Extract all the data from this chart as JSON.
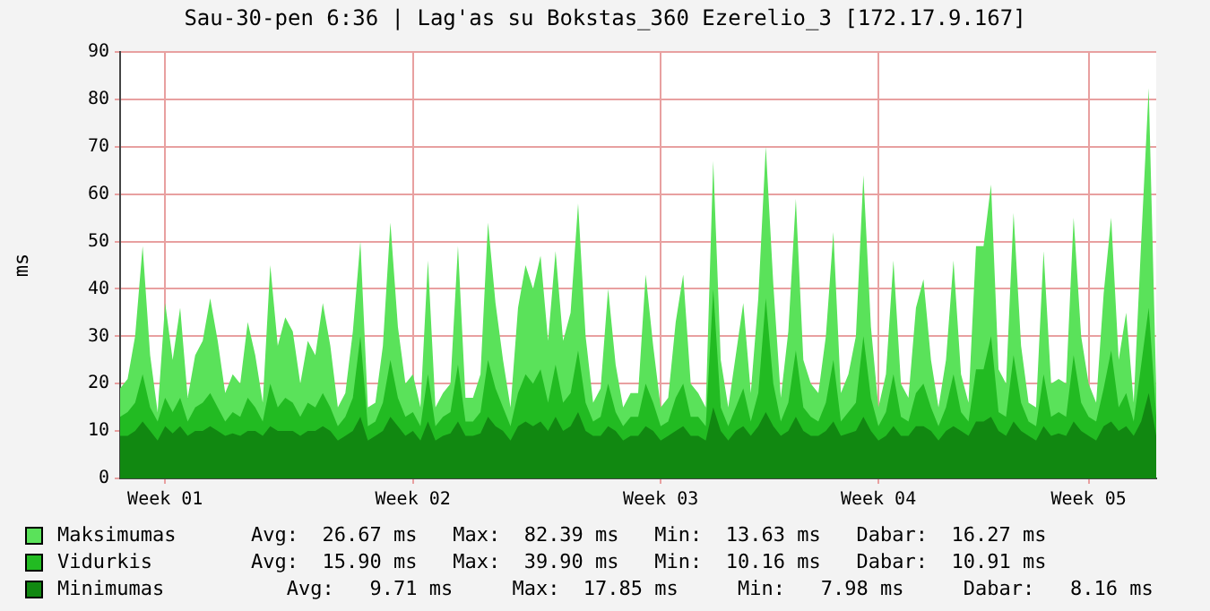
{
  "chart_data": {
    "type": "area",
    "title": "Sau-30-pen 6:36 | Lag'as su Bokstas_360 Ezerelio_3 [172.17.9.167]",
    "ylabel": "ms",
    "categories": [
      null,
      null,
      null,
      null,
      null,
      null,
      "Week 01",
      null,
      null,
      null,
      null,
      null,
      null,
      null,
      null,
      null,
      null,
      null,
      null,
      null,
      null,
      null,
      null,
      null,
      null,
      null,
      null,
      null,
      null,
      null,
      null,
      null,
      null,
      null,
      null,
      null,
      null,
      null,
      null,
      "Week 02",
      null,
      null,
      null,
      null,
      null,
      null,
      null,
      null,
      null,
      null,
      null,
      null,
      null,
      null,
      null,
      null,
      null,
      null,
      null,
      null,
      null,
      null,
      null,
      null,
      null,
      null,
      null,
      null,
      null,
      null,
      null,
      null,
      "Week 03",
      null,
      null,
      null,
      null,
      null,
      null,
      null,
      null,
      null,
      null,
      null,
      null,
      null,
      null,
      null,
      null,
      null,
      null,
      null,
      null,
      null,
      null,
      null,
      null,
      null,
      null,
      null,
      null,
      "Week 04",
      null,
      null,
      null,
      null,
      null,
      null,
      null,
      null,
      null,
      null,
      null,
      null,
      null,
      null,
      null,
      null,
      null,
      null,
      null,
      null,
      null,
      null,
      null,
      null,
      null,
      null,
      null,
      "Week 05",
      null,
      null,
      null,
      null,
      null,
      null,
      null,
      null,
      null
    ],
    "series": [
      {
        "name": "Maksimumas",
        "color": "#5ae25a",
        "values": [
          19,
          21,
          30,
          49,
          26,
          14,
          37,
          25,
          36,
          17,
          26,
          29,
          38,
          29,
          18,
          22,
          20,
          33,
          26,
          16,
          45,
          28,
          34,
          31,
          20,
          29,
          26,
          37,
          28,
          15,
          18,
          31,
          50,
          15,
          16,
          28,
          54,
          32,
          20,
          22,
          15,
          46,
          15,
          18,
          20,
          49,
          17,
          17,
          22,
          54,
          37,
          25,
          15,
          36,
          45,
          40,
          47,
          29,
          48,
          29,
          35,
          58,
          30,
          16,
          19,
          40,
          24,
          15,
          18,
          18,
          43,
          28,
          15,
          17,
          33,
          43,
          20,
          18,
          15,
          67,
          25,
          15,
          26,
          37,
          18,
          38,
          70,
          41,
          17,
          31,
          59,
          25,
          20,
          18,
          30,
          52,
          18,
          22,
          30,
          64,
          32,
          15,
          22,
          46,
          20,
          17,
          36,
          42,
          25,
          15,
          25,
          46,
          22,
          16,
          49,
          49,
          62,
          23,
          20,
          56,
          28,
          16,
          15,
          48,
          20,
          21,
          20,
          55,
          30,
          20,
          16,
          39,
          55,
          25,
          35,
          16,
          50,
          82.4,
          19
        ]
      },
      {
        "name": "Vidurkis",
        "color": "#22bb22",
        "values": [
          13,
          14,
          16,
          22,
          15,
          12,
          17,
          14,
          17,
          12,
          15,
          16,
          18,
          15,
          12,
          14,
          13,
          17,
          15,
          12,
          20,
          15,
          17,
          16,
          13,
          16,
          15,
          18,
          15,
          11,
          13,
          17,
          30,
          11,
          12,
          16,
          25,
          17,
          13,
          14,
          11,
          22,
          11,
          13,
          14,
          24,
          12,
          12,
          14,
          25,
          19,
          15,
          11,
          18,
          22,
          20,
          23,
          16,
          24,
          16,
          18,
          27,
          16,
          12,
          13,
          20,
          14,
          11,
          13,
          13,
          20,
          16,
          11,
          12,
          17,
          20,
          13,
          13,
          11,
          39.9,
          15,
          11,
          15,
          19,
          12,
          18,
          38,
          20,
          12,
          16,
          27,
          15,
          13,
          12,
          16,
          25,
          12,
          14,
          16,
          30,
          17,
          11,
          14,
          22,
          13,
          12,
          18,
          20,
          15,
          11,
          15,
          22,
          14,
          12,
          23,
          23,
          30,
          14,
          13,
          26,
          16,
          12,
          11,
          22,
          13,
          14,
          13,
          26,
          16,
          13,
          12,
          19,
          27,
          15,
          18,
          12,
          24,
          36,
          13
        ]
      },
      {
        "name": "Minimumas",
        "color": "#118811",
        "values": [
          9,
          9,
          10,
          12,
          10,
          8,
          11,
          9.5,
          11,
          9,
          10,
          10,
          11,
          10,
          9,
          9.5,
          9,
          10,
          10,
          9,
          11,
          10,
          10,
          10,
          9,
          10,
          10,
          11,
          10,
          8,
          9,
          10,
          13,
          8,
          9,
          10,
          13,
          11,
          9,
          10,
          8,
          12,
          8,
          9,
          9.5,
          12,
          9,
          9,
          9.5,
          13,
          11,
          10,
          8,
          11,
          12,
          11,
          12,
          10,
          13,
          10,
          11,
          14,
          10,
          9,
          9,
          11,
          10,
          8,
          9,
          9,
          11,
          10,
          8,
          9,
          10,
          11,
          9,
          9,
          8,
          15,
          10,
          8,
          10,
          11,
          9,
          11,
          14,
          11,
          9,
          10,
          13,
          10,
          9,
          9,
          10,
          12,
          9,
          9.5,
          10,
          13,
          10,
          8,
          9,
          11,
          9,
          9,
          11,
          11,
          10,
          8,
          10,
          11,
          10,
          9,
          12,
          12,
          13,
          10,
          9,
          12,
          10,
          9,
          8,
          11,
          9,
          9.5,
          9,
          12,
          10,
          9,
          8,
          11,
          12,
          10,
          11,
          9,
          12,
          18,
          9
        ]
      }
    ],
    "annotations": [
      "Avg:  26.67 ms   Max:  82.39 ms   Min:  13.63 ms   Dabar:  16.27 ms",
      "Avg:  15.90 ms   Max:  39.90 ms   Min:  10.16 ms   Dabar:  10.91 ms",
      "   Avg:   9.71 ms     Max:  17.85 ms     Min:   7.98 ms     Dabar:   8.16 ms"
    ],
    "ylim": [
      0,
      90
    ],
    "yticks": [
      0,
      10,
      20,
      30,
      40,
      50,
      60,
      70,
      80,
      90
    ],
    "grid": true,
    "legend": "bottom"
  }
}
